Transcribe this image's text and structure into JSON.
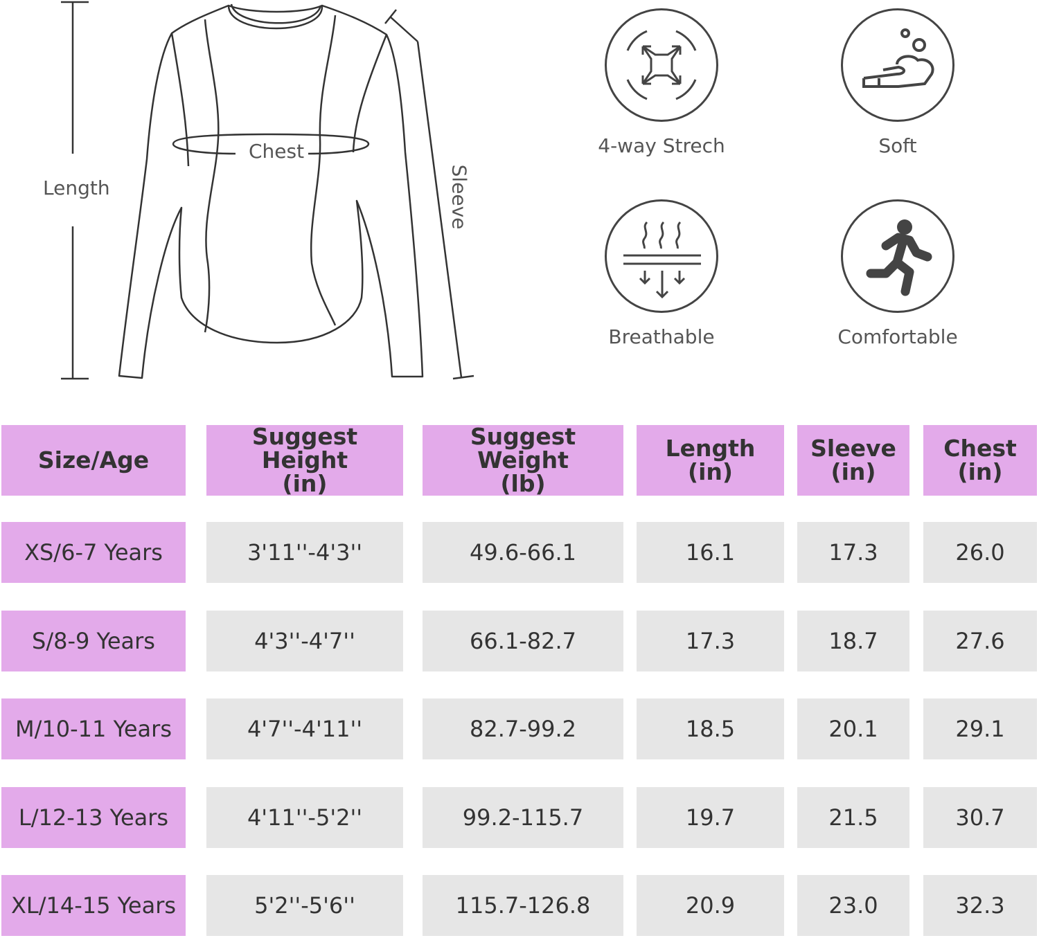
{
  "diagram": {
    "length_label": "Length",
    "chest_label": "Chest",
    "sleeve_label": "Sleeve"
  },
  "features": [
    {
      "label": "4-way Strech",
      "icon": "stretch-arrows-icon"
    },
    {
      "label": "Soft",
      "icon": "hand-bubbles-icon"
    },
    {
      "label": "Breathable",
      "icon": "breathable-vent-icon"
    },
    {
      "label": "Comfortable",
      "icon": "running-person-icon"
    }
  ],
  "table": {
    "headers": [
      {
        "line1": "Size/Age",
        "line2": ""
      },
      {
        "line1": "Suggest Height",
        "line2": "(in)"
      },
      {
        "line1": "Suggest Weight",
        "line2": "(lb)"
      },
      {
        "line1": "Length",
        "line2": "(in)"
      },
      {
        "line1": "Sleeve",
        "line2": "(in)"
      },
      {
        "line1": "Chest",
        "line2": "(in)"
      }
    ],
    "rows": [
      [
        "XS/6-7 Years",
        "3'11''-4'3''",
        "49.6-66.1",
        "16.1",
        "17.3",
        "26.0"
      ],
      [
        "S/8-9 Years",
        "4'3''-4'7''",
        "66.1-82.7",
        "17.3",
        "18.7",
        "27.6"
      ],
      [
        "M/10-11 Years",
        "4'7''-4'11''",
        "82.7-99.2",
        "18.5",
        "20.1",
        "29.1"
      ],
      [
        "L/12-13 Years",
        "4'11''-5'2''",
        "99.2-115.7",
        "19.7",
        "21.5",
        "30.7"
      ],
      [
        "XL/14-15 Years",
        "5'2''-5'6''",
        "115.7-126.8",
        "20.9",
        "23.0",
        "32.3"
      ]
    ]
  },
  "colors": {
    "header_bg": "#e3aaea",
    "cell_bg": "#e6e6e6",
    "line": "#444444"
  }
}
